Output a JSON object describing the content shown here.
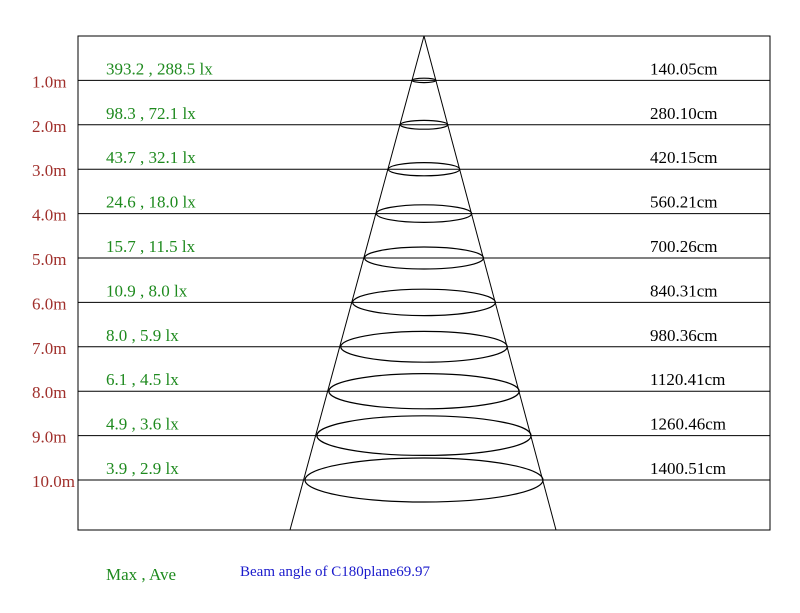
{
  "rows": [
    {
      "distance": "1.0m",
      "lux": "393.2 , 288.5 lx",
      "diameter": "140.05cm"
    },
    {
      "distance": "2.0m",
      "lux": "98.3 , 72.1 lx",
      "diameter": "280.10cm"
    },
    {
      "distance": "3.0m",
      "lux": "43.7 , 32.1 lx",
      "diameter": "420.15cm"
    },
    {
      "distance": "4.0m",
      "lux": "24.6 , 18.0 lx",
      "diameter": "560.21cm"
    },
    {
      "distance": "5.0m",
      "lux": "15.7 , 11.5 lx",
      "diameter": "700.26cm"
    },
    {
      "distance": "6.0m",
      "lux": "10.9 , 8.0 lx",
      "diameter": "840.31cm"
    },
    {
      "distance": "7.0m",
      "lux": "8.0 , 5.9 lx",
      "diameter": "980.36cm"
    },
    {
      "distance": "8.0m",
      "lux": "6.1 , 4.5 lx",
      "diameter": "1120.41cm"
    },
    {
      "distance": "9.0m",
      "lux": "4.9 , 3.6 lx",
      "diameter": "1260.46cm"
    },
    {
      "distance": "10.0m",
      "lux": "3.9 , 2.9 lx",
      "diameter": "1400.51cm"
    }
  ],
  "legend": "Max , Ave",
  "note": "Beam angle of C180plane69.97"
}
